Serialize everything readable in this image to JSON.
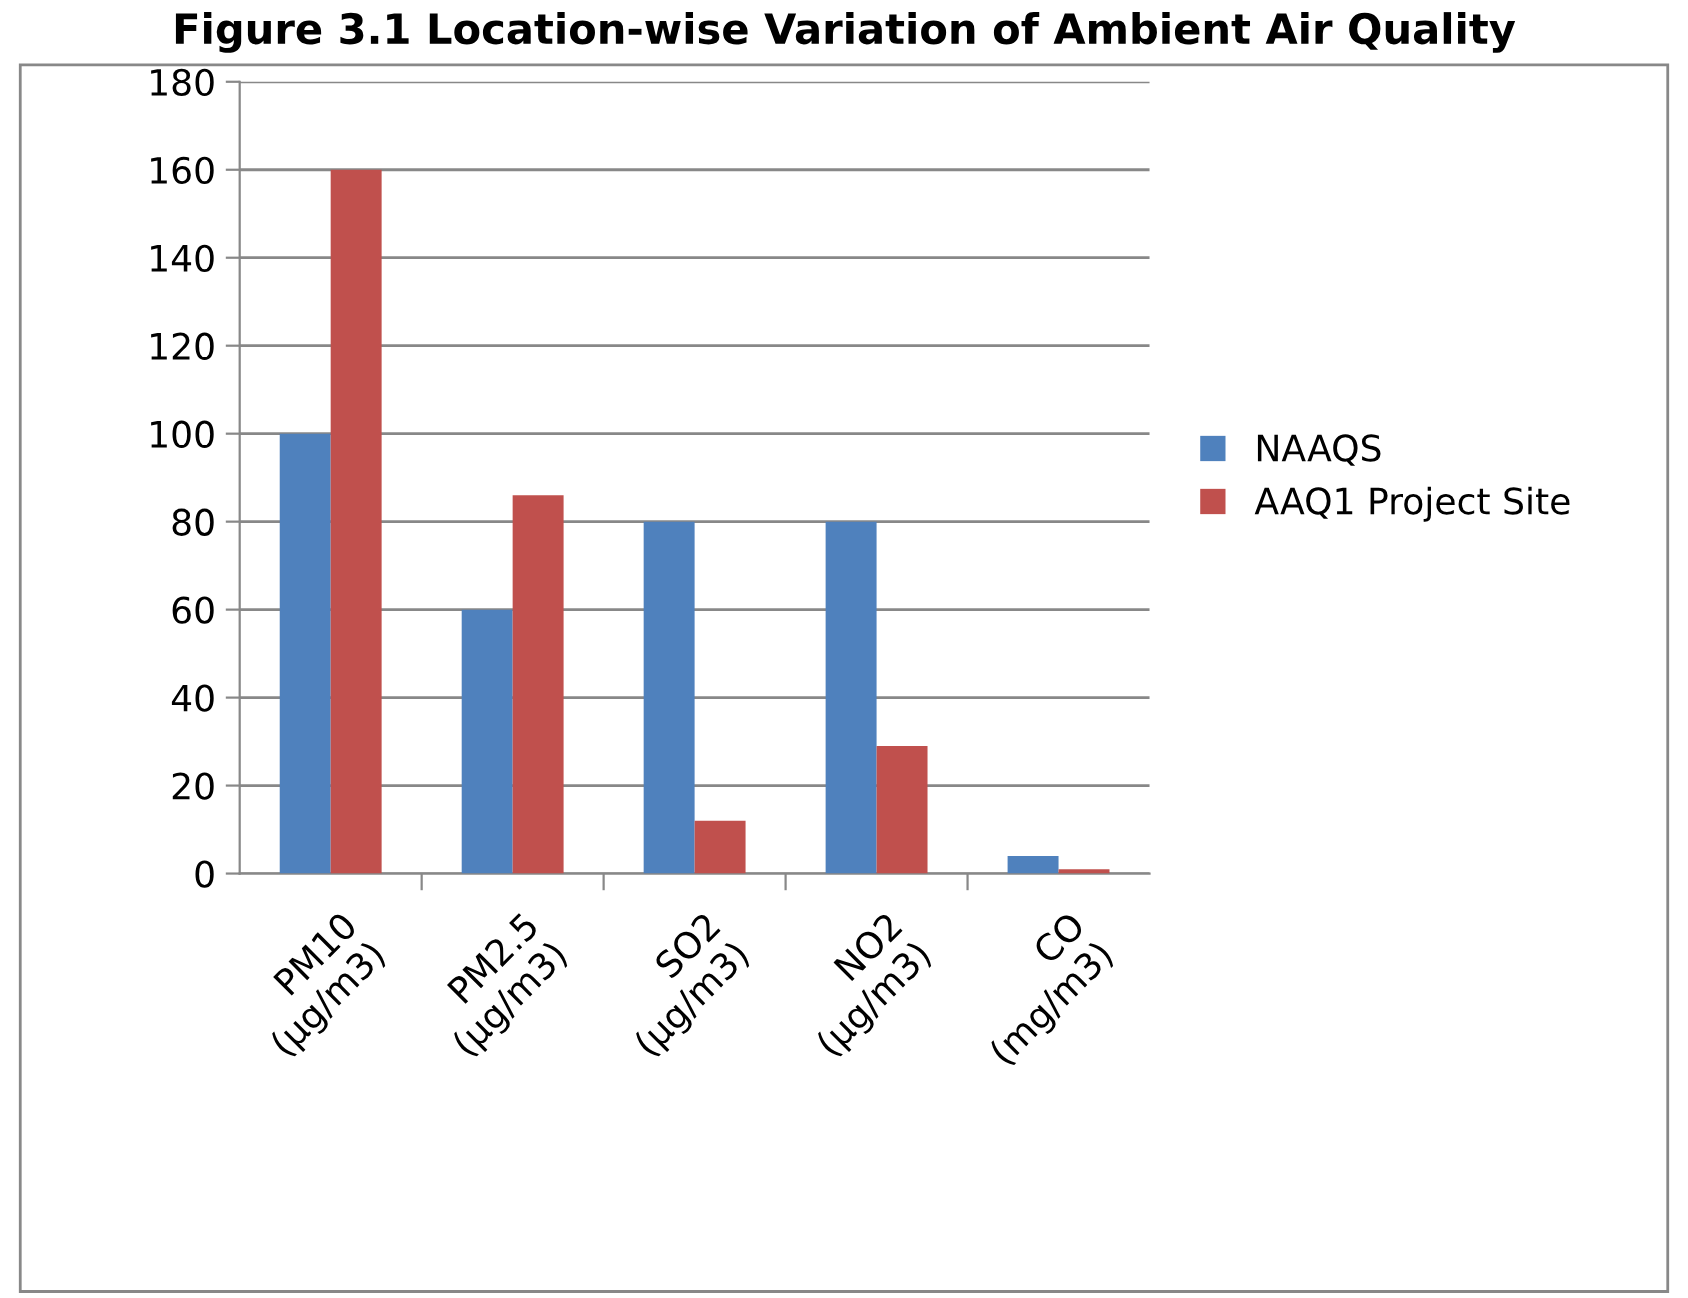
{
  "chart_data": {
    "type": "bar",
    "title": "Figure 3.1 Location-wise Variation of Ambient Air Quality",
    "categories": [
      "PM10 (µg/m3)",
      "PM2.5 (µg/m3)",
      "SO2 (µg/m3)",
      "NO2 (µg/m3)",
      "CO (mg/m3)"
    ],
    "series": [
      {
        "name": "NAAQS",
        "color": "#4f81bd",
        "values": [
          100,
          60,
          80,
          80,
          4
        ]
      },
      {
        "name": "AAQ1 Project Site",
        "color": "#c0504d",
        "values": [
          160,
          86,
          12,
          29,
          1
        ]
      }
    ],
    "ylim": [
      0,
      180
    ],
    "yticks": [
      0,
      20,
      40,
      60,
      80,
      100,
      120,
      140,
      160,
      180
    ],
    "grid": "y",
    "legend": "right"
  }
}
